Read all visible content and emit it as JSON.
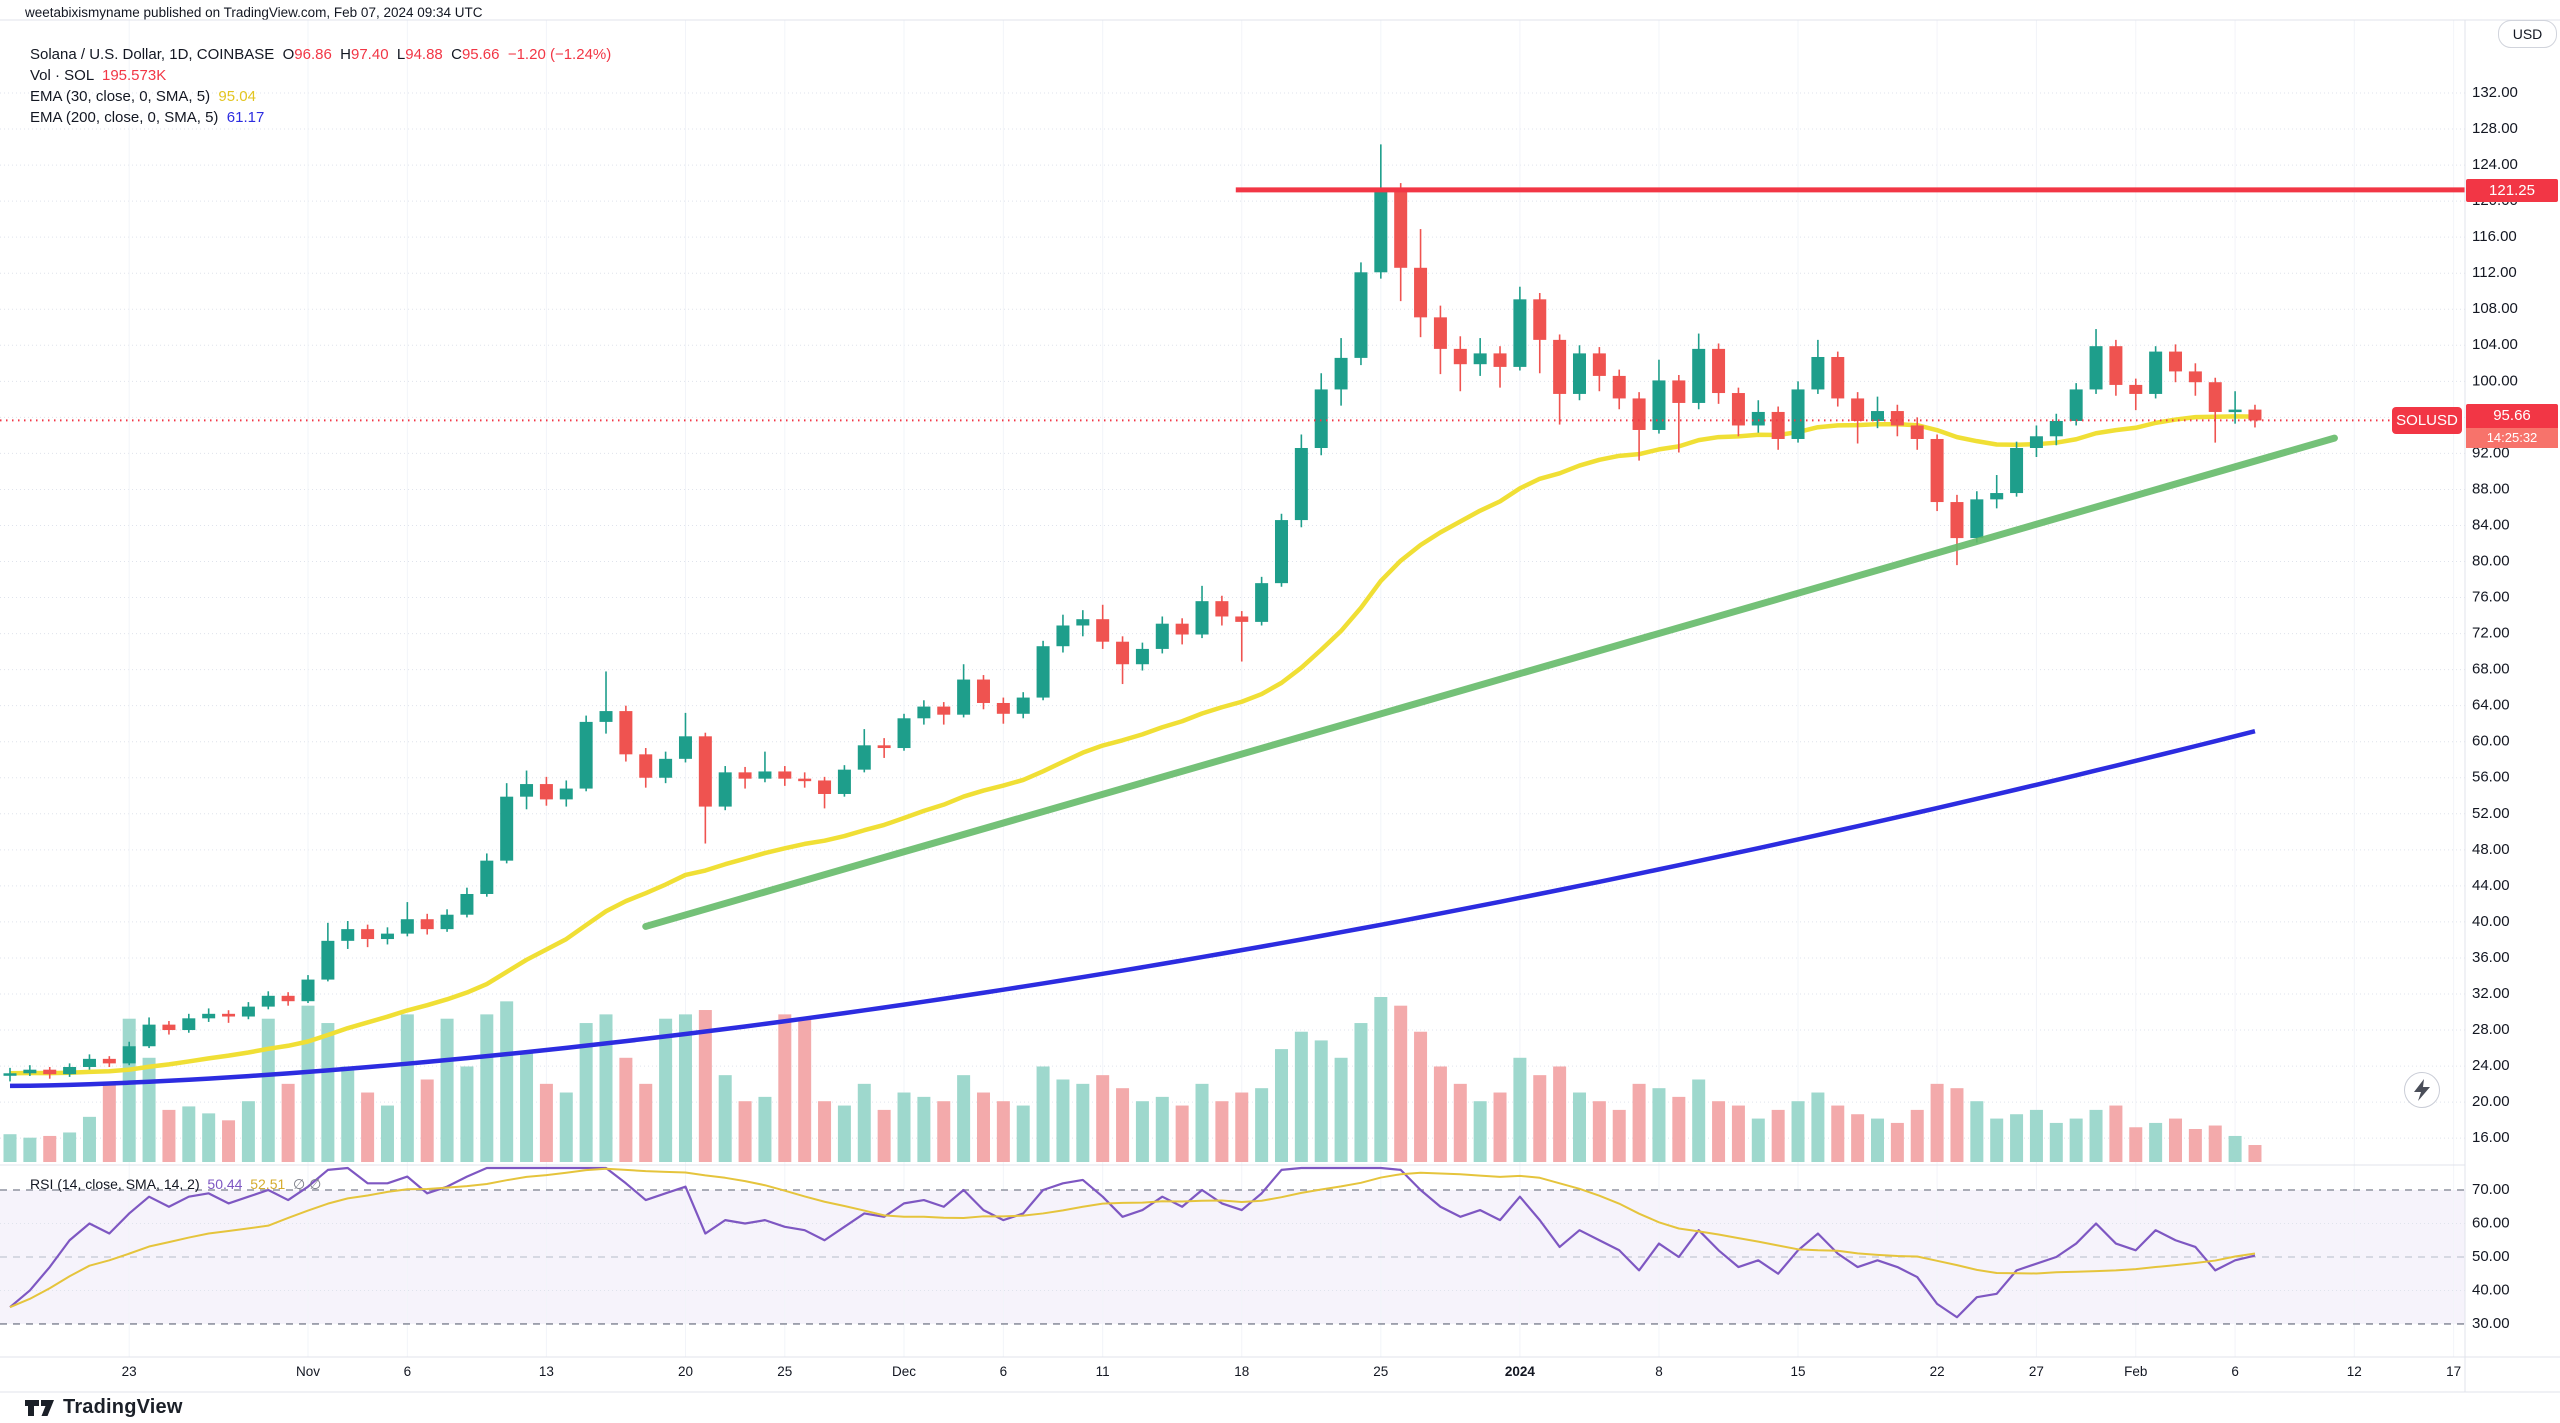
{
  "header": {
    "publish": "weetabixismyname published on TradingView.com, Feb 07, 2024 09:34 UTC"
  },
  "legend": {
    "rows": [
      {
        "name": "symbol-row",
        "parts": [
          [
            "Solana / U.S. Dollar, 1D, COINBASE",
            "#131722"
          ],
          [
            "  O",
            "#131722"
          ],
          [
            "96.86",
            "#f23645"
          ],
          [
            "  H",
            "#131722"
          ],
          [
            "97.40",
            "#f23645"
          ],
          [
            "  L",
            "#131722"
          ],
          [
            "94.88",
            "#f23645"
          ],
          [
            "  C",
            "#131722"
          ],
          [
            "95.66",
            "#f23645"
          ],
          [
            "  −1.20 (−1.24%)",
            "#f23645"
          ]
        ]
      },
      {
        "name": "volume-row",
        "parts": [
          [
            "Vol · SOL",
            "#131722"
          ],
          [
            "  195.573K",
            "#f23645"
          ]
        ]
      },
      {
        "name": "ema30-row",
        "parts": [
          [
            "EMA (30, close, 0, SMA, 5)",
            "#131722"
          ],
          [
            "  95.04",
            "#e3c520"
          ]
        ]
      },
      {
        "name": "ema200-row",
        "parts": [
          [
            "EMA (200, close, 0, SMA, 5)",
            "#131722"
          ],
          [
            "  61.17",
            "#2c2ce0"
          ]
        ]
      }
    ],
    "rsi_row": {
      "parts": [
        [
          "RSI (14, close, SMA, 14, 2)",
          "#131722"
        ],
        [
          "  50.44",
          "#7e57c2"
        ],
        [
          "  52.51",
          "#d5ac2f"
        ],
        [
          "  ∅ ∅",
          "#787b86"
        ]
      ]
    }
  },
  "axis": {
    "usd": "USD",
    "level_label": "121.25",
    "price_label": "95.66",
    "countdown": "14:25:32"
  },
  "badge": {
    "symbol": "SOLUSD"
  },
  "footer": {
    "brand": "TradingView"
  },
  "colors": {
    "up": "#1e9e8b",
    "down": "#ef5350",
    "volUp": "#9ed8cd",
    "volDown": "#f3aaab",
    "ema30": "#f0df35",
    "ema200": "#2c2ce0",
    "rsi": "#7e57c2",
    "rsiMa": "#e5c43c",
    "accent": "#f23645",
    "text": "#131722",
    "grid": "#f2f4f9",
    "gridDot": "#dfe3ec",
    "border": "#e0e3eb",
    "band": "rgba(126,87,194,0.07)",
    "muted": "#787b86",
    "trend": "#66bb6a"
  },
  "chart_data": {
    "type": "candlestick",
    "title": "Solana / U.S. Dollar",
    "interval": "1D",
    "exchange": "COINBASE",
    "start_date": "2023-10-17",
    "last_ohlc": {
      "o": 96.86,
      "h": 97.4,
      "l": 94.88,
      "c": 95.66,
      "change": -1.2,
      "change_pct": -1.24,
      "volume_label": "195.573K"
    },
    "price_axis": {
      "min": 16,
      "max": 132,
      "step": 4,
      "skip": [
        96
      ]
    },
    "rsi_axis": {
      "ticks": [
        70,
        60,
        50,
        40,
        30
      ],
      "upper": 70,
      "lower": 30,
      "mid": 50
    },
    "time_ticks": [
      [
        "23",
        6
      ],
      [
        "Nov",
        15
      ],
      [
        "6",
        20
      ],
      [
        "13",
        27
      ],
      [
        "20",
        34
      ],
      [
        "25",
        39
      ],
      [
        "Dec",
        45
      ],
      [
        "6",
        50
      ],
      [
        "11",
        55
      ],
      [
        "18",
        62
      ],
      [
        "25",
        69
      ],
      [
        "2024",
        76
      ],
      [
        "8",
        83
      ],
      [
        "15",
        90
      ],
      [
        "22",
        97
      ],
      [
        "27",
        102
      ],
      [
        "Feb",
        107
      ],
      [
        "6",
        112
      ],
      [
        "12",
        118
      ],
      [
        "17",
        123
      ]
    ],
    "bold_tick": "2024",
    "candles": [
      [
        23.0,
        23.8,
        22.3,
        23.2
      ],
      [
        23.2,
        24.1,
        22.9,
        23.6
      ],
      [
        23.6,
        23.9,
        22.6,
        23.1
      ],
      [
        23.1,
        24.3,
        22.8,
        23.9
      ],
      [
        23.9,
        25.3,
        23.6,
        24.8
      ],
      [
        24.8,
        25.1,
        23.9,
        24.3
      ],
      [
        24.3,
        26.7,
        24.1,
        26.2
      ],
      [
        26.2,
        29.4,
        26.0,
        28.6
      ],
      [
        28.6,
        29.0,
        27.5,
        28.0
      ],
      [
        28.0,
        29.8,
        27.7,
        29.3
      ],
      [
        29.3,
        30.4,
        28.9,
        29.8
      ],
      [
        29.8,
        30.2,
        28.8,
        29.5
      ],
      [
        29.5,
        31.1,
        29.2,
        30.6
      ],
      [
        30.6,
        32.3,
        30.3,
        31.8
      ],
      [
        31.8,
        32.2,
        30.7,
        31.2
      ],
      [
        31.2,
        34.1,
        31.0,
        33.6
      ],
      [
        33.6,
        39.9,
        33.4,
        37.9
      ],
      [
        37.9,
        40.1,
        37.0,
        39.2
      ],
      [
        39.2,
        39.7,
        37.2,
        38.1
      ],
      [
        38.1,
        39.4,
        37.5,
        38.7
      ],
      [
        38.7,
        42.2,
        38.4,
        40.3
      ],
      [
        40.3,
        40.9,
        38.6,
        39.2
      ],
      [
        39.2,
        41.4,
        38.9,
        40.8
      ],
      [
        40.8,
        43.8,
        40.5,
        43.1
      ],
      [
        43.1,
        47.6,
        42.8,
        46.8
      ],
      [
        46.8,
        55.4,
        46.5,
        53.9
      ],
      [
        53.9,
        56.8,
        52.5,
        55.3
      ],
      [
        55.3,
        56.1,
        52.9,
        53.6
      ],
      [
        53.6,
        55.7,
        52.8,
        54.8
      ],
      [
        54.8,
        62.9,
        54.5,
        62.2
      ],
      [
        62.2,
        67.8,
        60.9,
        63.4
      ],
      [
        63.4,
        64.0,
        57.8,
        58.6
      ],
      [
        58.6,
        59.3,
        54.9,
        56.0
      ],
      [
        56.0,
        58.9,
        55.4,
        58.1
      ],
      [
        58.1,
        63.2,
        57.7,
        60.6
      ],
      [
        60.6,
        61.0,
        48.7,
        52.8
      ],
      [
        52.8,
        57.3,
        52.4,
        56.6
      ],
      [
        56.6,
        57.2,
        54.8,
        55.9
      ],
      [
        55.9,
        58.9,
        55.5,
        56.7
      ],
      [
        56.7,
        57.3,
        55.1,
        55.9
      ],
      [
        55.9,
        56.6,
        54.9,
        55.7
      ],
      [
        55.7,
        56.1,
        52.6,
        54.2
      ],
      [
        54.2,
        57.4,
        53.9,
        56.9
      ],
      [
        56.9,
        61.4,
        56.6,
        59.6
      ],
      [
        59.6,
        60.4,
        58.2,
        59.3
      ],
      [
        59.3,
        63.1,
        59.0,
        62.6
      ],
      [
        62.6,
        64.6,
        61.9,
        63.9
      ],
      [
        63.9,
        64.4,
        61.9,
        63.0
      ],
      [
        63.0,
        68.6,
        62.7,
        66.9
      ],
      [
        66.9,
        67.4,
        63.6,
        64.3
      ],
      [
        64.3,
        64.9,
        62.0,
        63.1
      ],
      [
        63.1,
        65.5,
        62.6,
        64.9
      ],
      [
        64.9,
        71.2,
        64.6,
        70.6
      ],
      [
        70.6,
        74.1,
        69.9,
        72.9
      ],
      [
        72.9,
        74.6,
        71.7,
        73.6
      ],
      [
        73.6,
        75.2,
        70.3,
        71.1
      ],
      [
        71.1,
        71.7,
        66.4,
        68.6
      ],
      [
        68.6,
        71.0,
        67.9,
        70.3
      ],
      [
        70.3,
        73.9,
        69.8,
        73.1
      ],
      [
        73.1,
        73.7,
        70.8,
        71.9
      ],
      [
        71.9,
        77.3,
        71.5,
        75.6
      ],
      [
        75.6,
        76.2,
        72.9,
        73.9
      ],
      [
        73.9,
        74.5,
        68.9,
        73.3
      ],
      [
        73.3,
        78.3,
        72.9,
        77.6
      ],
      [
        77.6,
        85.3,
        77.2,
        84.6
      ],
      [
        84.6,
        94.1,
        83.8,
        92.6
      ],
      [
        92.6,
        100.9,
        91.8,
        99.1
      ],
      [
        99.1,
        104.8,
        97.3,
        102.6
      ],
      [
        102.6,
        113.2,
        101.8,
        112.1
      ],
      [
        112.1,
        126.3,
        111.4,
        121.1
      ],
      [
        121.1,
        122.0,
        108.9,
        112.6
      ],
      [
        112.6,
        116.9,
        104.9,
        107.1
      ],
      [
        107.1,
        108.4,
        100.8,
        103.6
      ],
      [
        103.6,
        105.0,
        98.9,
        101.9
      ],
      [
        101.9,
        104.8,
        100.6,
        103.1
      ],
      [
        103.1,
        103.9,
        99.3,
        101.6
      ],
      [
        101.6,
        110.5,
        101.2,
        109.1
      ],
      [
        109.1,
        109.8,
        100.9,
        104.6
      ],
      [
        104.6,
        105.2,
        95.2,
        98.6
      ],
      [
        98.6,
        104.0,
        97.9,
        103.1
      ],
      [
        103.1,
        103.8,
        98.9,
        100.6
      ],
      [
        100.6,
        101.3,
        96.9,
        98.1
      ],
      [
        98.1,
        98.8,
        91.2,
        94.6
      ],
      [
        94.6,
        102.4,
        94.2,
        100.1
      ],
      [
        100.1,
        100.7,
        92.1,
        97.6
      ],
      [
        97.6,
        105.3,
        96.9,
        103.6
      ],
      [
        103.6,
        104.2,
        97.5,
        98.7
      ],
      [
        98.7,
        99.3,
        93.9,
        95.1
      ],
      [
        95.1,
        97.9,
        94.3,
        96.6
      ],
      [
        96.6,
        97.2,
        92.4,
        93.6
      ],
      [
        93.6,
        100.0,
        93.2,
        99.1
      ],
      [
        99.1,
        104.6,
        98.6,
        102.7
      ],
      [
        102.7,
        103.3,
        97.2,
        98.1
      ],
      [
        98.1,
        98.8,
        93.1,
        95.6
      ],
      [
        95.6,
        98.3,
        94.8,
        96.7
      ],
      [
        96.7,
        97.4,
        93.9,
        95.1
      ],
      [
        95.1,
        96.0,
        92.4,
        93.6
      ],
      [
        93.6,
        94.1,
        85.6,
        86.6
      ],
      [
        86.6,
        87.4,
        79.6,
        82.6
      ],
      [
        82.6,
        87.8,
        82.1,
        86.9
      ],
      [
        86.9,
        89.6,
        85.9,
        87.6
      ],
      [
        87.6,
        93.3,
        87.2,
        92.6
      ],
      [
        92.6,
        95.1,
        91.6,
        93.9
      ],
      [
        93.9,
        96.4,
        92.9,
        95.6
      ],
      [
        95.6,
        99.8,
        95.1,
        99.1
      ],
      [
        99.1,
        105.8,
        98.6,
        103.9
      ],
      [
        103.9,
        104.6,
        98.4,
        99.6
      ],
      [
        99.6,
        100.3,
        96.8,
        98.6
      ],
      [
        98.6,
        103.9,
        98.1,
        103.3
      ],
      [
        103.3,
        104.1,
        99.9,
        101.1
      ],
      [
        101.1,
        102.0,
        98.4,
        99.9
      ],
      [
        99.9,
        100.4,
        93.2,
        96.6
      ],
      [
        96.6,
        98.9,
        95.3,
        96.86
      ],
      [
        96.86,
        97.4,
        94.88,
        95.66
      ]
    ],
    "volume_k": [
      320,
      280,
      300,
      340,
      520,
      900,
      1650,
      1200,
      600,
      640,
      560,
      480,
      700,
      1650,
      900,
      1800,
      1600,
      1100,
      800,
      650,
      1700,
      950,
      1650,
      1100,
      1700,
      1850,
      1250,
      900,
      800,
      1600,
      1700,
      1200,
      900,
      1650,
      1700,
      1750,
      1000,
      700,
      750,
      1700,
      1650,
      700,
      650,
      900,
      600,
      800,
      750,
      700,
      1000,
      800,
      700,
      650,
      1100,
      950,
      900,
      1000,
      850,
      700,
      750,
      650,
      900,
      700,
      800,
      850,
      1300,
      1500,
      1400,
      1200,
      1600,
      1900,
      1800,
      1500,
      1100,
      900,
      700,
      800,
      1200,
      1000,
      1100,
      800,
      700,
      600,
      900,
      850,
      750,
      950,
      700,
      650,
      500,
      600,
      700,
      800,
      650,
      550,
      500,
      450,
      600,
      900,
      850,
      700,
      500,
      550,
      600,
      450,
      500,
      600,
      650,
      400,
      450,
      500,
      380,
      420,
      300,
      195.573
    ],
    "rsi": [
      35,
      40,
      47,
      55,
      60,
      57,
      63,
      68,
      65,
      68,
      69,
      66,
      68,
      70,
      67,
      71,
      76,
      77,
      72,
      72,
      74,
      69,
      71,
      74,
      78,
      82,
      82,
      77,
      77,
      82,
      82,
      72,
      67,
      69,
      71,
      57,
      61,
      60,
      61,
      59,
      58,
      55,
      59,
      63,
      62,
      66,
      67,
      65,
      70,
      64,
      61,
      63,
      70,
      72,
      73,
      68,
      62,
      64,
      68,
      65,
      70,
      66,
      64,
      69,
      76,
      81,
      84,
      85,
      88,
      90,
      76,
      70,
      65,
      62,
      64,
      61,
      68,
      61,
      53,
      58,
      55,
      52,
      46,
      54,
      50,
      58,
      52,
      47,
      49,
      45,
      52,
      57,
      51,
      47,
      49,
      47,
      44,
      36,
      32,
      38,
      39,
      46,
      48,
      50,
      54,
      60,
      54,
      52,
      58,
      55,
      53,
      46,
      49,
      50.44
    ],
    "overlays": {
      "ema30": {
        "period": 30,
        "legend_value": 95.04
      },
      "ema200": {
        "start": 21.8,
        "end": 61.17,
        "shape_exp": 1.6,
        "legend_value": 61.17
      },
      "trendline": {
        "day1": 32,
        "price1": 39.5,
        "day2": 117,
        "price2": 93.7
      },
      "resistance": {
        "price": 121.25,
        "start_day": 61.7
      },
      "last_price_line": {
        "value": 95.66,
        "countdown": "14:25:32"
      },
      "rsi_ma": {
        "period": 14,
        "legend_value": 52.51
      }
    }
  }
}
